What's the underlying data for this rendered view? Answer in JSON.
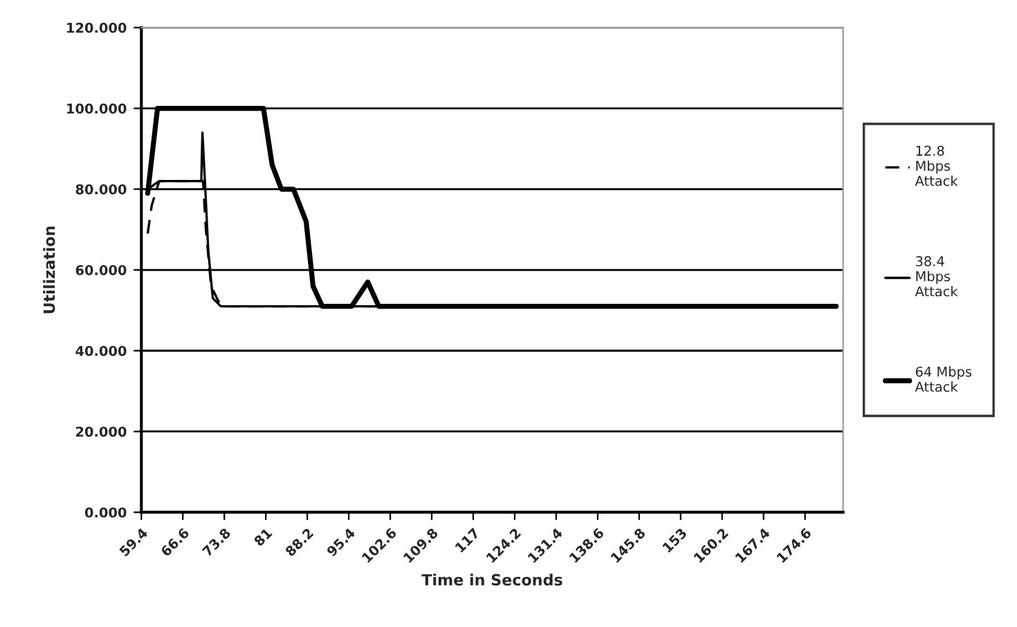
{
  "chart_data": {
    "type": "line",
    "xlabel": "Time in Seconds",
    "ylabel": "Utilization",
    "xlim": [
      59.4,
      181.2
    ],
    "ylim": [
      0,
      120
    ],
    "xticks": [
      59.4,
      66.6,
      73.8,
      81,
      88.2,
      95.4,
      102.6,
      109.8,
      117,
      124.2,
      131.4,
      138.6,
      145.8,
      153,
      160.2,
      167.4,
      174.6
    ],
    "yticks": [
      {
        "value": 0,
        "label": "0.000"
      },
      {
        "value": 20,
        "label": "20.000"
      },
      {
        "value": 40,
        "label": "40.000"
      },
      {
        "value": 60,
        "label": "60.000"
      },
      {
        "value": 80,
        "label": "80.000"
      },
      {
        "value": 100,
        "label": "100.000"
      },
      {
        "value": 120,
        "label": "120.000"
      }
    ],
    "grid": "y",
    "legend": "right",
    "series": [
      {
        "name": "12.8 Mbps Attack",
        "color": "#000000",
        "line_style": "dashed",
        "x": [
          60.5,
          61.2,
          62.5,
          70.1,
          70.6,
          71.5,
          73.2,
          180
        ],
        "values": [
          69,
          76,
          82,
          82,
          70,
          56,
          51,
          51
        ]
      },
      {
        "name": "38.4 Mbps Attack",
        "color": "#000000",
        "line_style": "solid",
        "x": [
          60.5,
          62.5,
          69.8,
          70.0,
          70.5,
          71,
          71.8,
          73.2,
          180
        ],
        "values": [
          80,
          82,
          82,
          94,
          80,
          65,
          53,
          51,
          51
        ]
      },
      {
        "name": "64 Mbps Attack",
        "color": "#000000",
        "line_style": "solid",
        "x": [
          60.5,
          62.2,
          80.6,
          82.1,
          83.7,
          85.8,
          88.0,
          89.2,
          90.8,
          95.9,
          98.7,
          100.6,
          180
        ],
        "values": [
          79,
          100,
          100,
          86,
          80,
          80,
          72,
          56,
          51,
          51,
          57,
          51,
          51
        ]
      }
    ]
  }
}
